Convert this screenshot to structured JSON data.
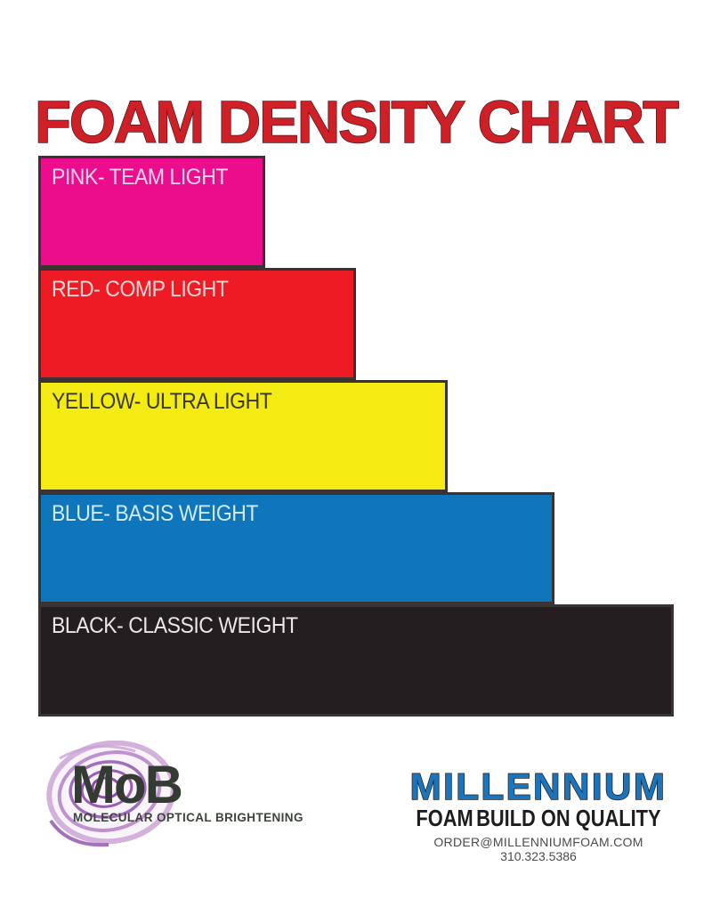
{
  "title": "FOAM DENSITY CHART",
  "title_color": "#ce2026",
  "chart_data": {
    "type": "bar",
    "orientation": "horizontal",
    "title": "FOAM DENSITY CHART",
    "categories": [
      "PINK- TEAM LIGHT",
      "RED- COMP LIGHT",
      "YELLOW- ULTRA LIGHT",
      "BLUE- BASIS WEIGHT",
      "BLACK- CLASSIC WEIGHT"
    ],
    "relative_widths_pct": [
      35.7,
      50.0,
      64.4,
      81.2,
      100
    ],
    "border_color": "#3a3334",
    "bars": [
      {
        "label": "PINK- TEAM LIGHT",
        "fill": "#ec0d8d",
        "label_color": "#f6d3e8",
        "width_pct": 35.7
      },
      {
        "label": "RED- COMP LIGHT",
        "fill": "#ee1b24",
        "label_color": "#f7d6d8",
        "width_pct": 50.0
      },
      {
        "label": "YELLOW- ULTRA LIGHT",
        "fill": "#f4eb12",
        "label_color": "#3c3a24",
        "width_pct": 64.4
      },
      {
        "label": "BLUE- BASIS WEIGHT",
        "fill": "#0f76bc",
        "label_color": "#cfeafa",
        "width_pct": 81.2
      },
      {
        "label": "BLACK- CLASSIC WEIGHT",
        "fill": "#241e20",
        "label_color": "#e9e7e7",
        "width_pct": 100
      }
    ]
  },
  "footer": {
    "mob": {
      "name": "MoB",
      "tagline": "MOLECULAR OPTICAL BRIGHTENING",
      "swirl_color": "#a06cbb",
      "text_color": "#333b33"
    },
    "millennium": {
      "name": "MILLENNIUM",
      "name_color": "#1b75bc",
      "tagline_left": "FOAM",
      "tagline_right": "BUILD ON QUALITY",
      "email": "ORDER@MILLENNIUMFOAM.COM",
      "phone": "310.323.5386"
    }
  }
}
